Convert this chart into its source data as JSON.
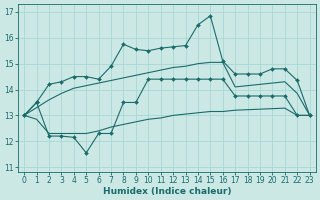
{
  "bg_color": "#cce8e5",
  "grid_color": "#a8d8d4",
  "line_color": "#1a6b6b",
  "xlabel": "Humidex (Indice chaleur)",
  "xlim": [
    -0.5,
    23.5
  ],
  "ylim": [
    10.8,
    17.3
  ],
  "yticks": [
    11,
    12,
    13,
    14,
    15,
    16,
    17
  ],
  "xticks": [
    0,
    1,
    2,
    3,
    4,
    5,
    6,
    7,
    8,
    9,
    10,
    11,
    12,
    13,
    14,
    15,
    16,
    17,
    18,
    19,
    20,
    21,
    22,
    23
  ],
  "upper_jagged_x": [
    0,
    1,
    2,
    3,
    4,
    5,
    6,
    7,
    8,
    9,
    10,
    11,
    12,
    13,
    14,
    15,
    16,
    17,
    18,
    19,
    20,
    21,
    22,
    23
  ],
  "upper_jagged_y": [
    13.0,
    13.5,
    14.2,
    14.3,
    14.5,
    14.5,
    14.4,
    14.9,
    15.75,
    15.55,
    15.5,
    15.6,
    15.65,
    15.7,
    16.5,
    16.85,
    15.1,
    14.6,
    14.6,
    14.6,
    14.8,
    14.8,
    14.35,
    13.0
  ],
  "lower_jagged_x": [
    0,
    1,
    2,
    3,
    4,
    5,
    6,
    7,
    8,
    9,
    10,
    11,
    12,
    13,
    14,
    15,
    16,
    17,
    18,
    19,
    20,
    21,
    22,
    23
  ],
  "lower_jagged_y": [
    13.0,
    13.5,
    12.2,
    12.2,
    12.15,
    11.55,
    12.3,
    12.3,
    13.5,
    13.5,
    14.4,
    14.4,
    14.4,
    14.4,
    14.4,
    14.4,
    14.4,
    13.75,
    13.75,
    13.75,
    13.75,
    13.75,
    13.0,
    13.0
  ],
  "env_upper_x": [
    0,
    1,
    2,
    3,
    4,
    5,
    6,
    7,
    8,
    9,
    10,
    11,
    12,
    13,
    14,
    15,
    16,
    17,
    18,
    19,
    20,
    21,
    22,
    23
  ],
  "env_upper_y": [
    13.0,
    13.3,
    13.6,
    13.85,
    14.05,
    14.15,
    14.25,
    14.35,
    14.45,
    14.55,
    14.65,
    14.75,
    14.85,
    14.9,
    15.0,
    15.05,
    15.05,
    14.1,
    14.15,
    14.2,
    14.25,
    14.3,
    13.85,
    13.0
  ],
  "env_lower_x": [
    0,
    1,
    2,
    3,
    4,
    5,
    6,
    7,
    8,
    9,
    10,
    11,
    12,
    13,
    14,
    15,
    16,
    17,
    18,
    19,
    20,
    21,
    22,
    23
  ],
  "env_lower_y": [
    13.0,
    12.85,
    12.3,
    12.3,
    12.3,
    12.3,
    12.4,
    12.55,
    12.65,
    12.75,
    12.85,
    12.9,
    13.0,
    13.05,
    13.1,
    13.15,
    13.15,
    13.2,
    13.22,
    13.24,
    13.26,
    13.28,
    13.0,
    13.0
  ]
}
